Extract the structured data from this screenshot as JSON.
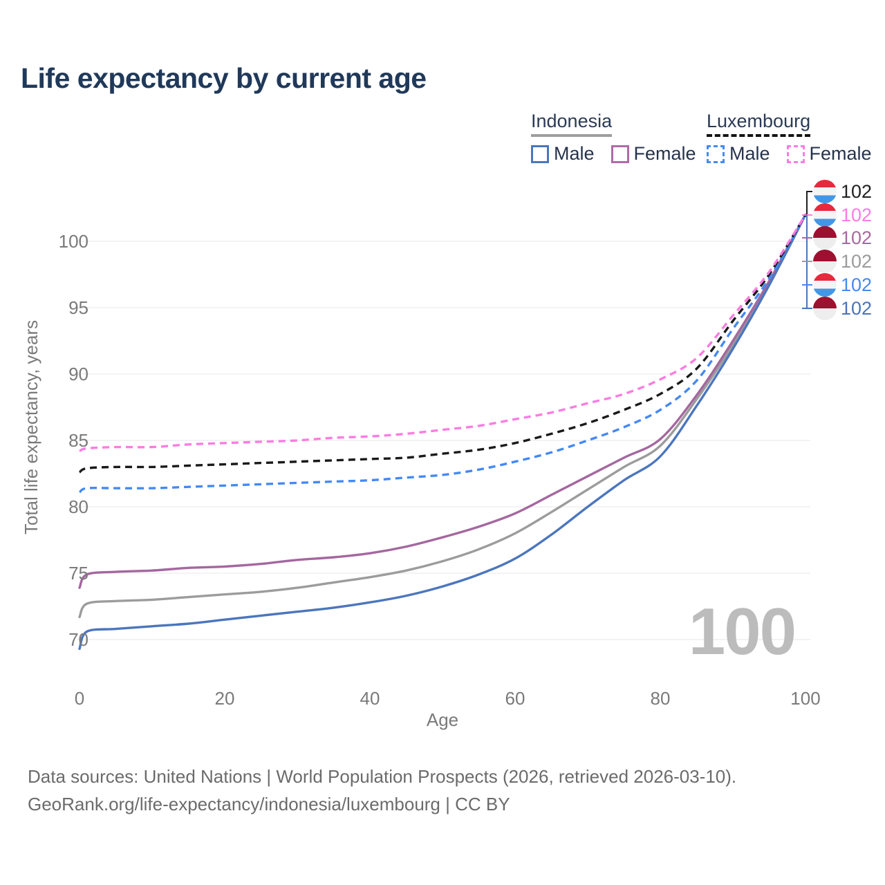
{
  "title": "Life expectancy by current age",
  "legend": {
    "groups": [
      {
        "country": "Indonesia",
        "line_style": "solid",
        "underline_color": "#9e9e9e",
        "items": [
          {
            "label": "Male",
            "color": "#4b76bd",
            "dashed": false
          },
          {
            "label": "Female",
            "color": "#ae6ba6",
            "dashed": false
          }
        ]
      },
      {
        "country": "Luxembourg",
        "line_style": "dashed",
        "underline_color": "#141414",
        "items": [
          {
            "label": "Male",
            "color": "#4489f4",
            "dashed": true
          },
          {
            "label": "Female",
            "color": "#fb7ce1",
            "dashed": true
          }
        ]
      }
    ]
  },
  "end_labels": [
    {
      "flag": "luxembourg",
      "value": "102",
      "color": "#1f1f1f",
      "series_key": "luxembourg_total"
    },
    {
      "flag": "luxembourg",
      "value": "102",
      "color": "#fb7ce1",
      "series_key": "luxembourg_female"
    },
    {
      "flag": "indonesia",
      "value": "102",
      "color": "#a7689f",
      "series_key": "indonesia_female"
    },
    {
      "flag": "indonesia",
      "value": "102",
      "color": "#9b9b9b",
      "series_key": "indonesia_total"
    },
    {
      "flag": "luxembourg",
      "value": "102",
      "color": "#4589f1",
      "series_key": "luxembourg_male"
    },
    {
      "flag": "indonesia",
      "value": "102",
      "color": "#4a74ba",
      "series_key": "indonesia_male"
    }
  ],
  "watermark": "100",
  "footer": {
    "line1": "Data sources: United Nations | World Population Prospects (2026, retrieved 2026-03-10).",
    "line2": "GeoRank.org/life-expectancy/indonesia/luxembourg | CC BY"
  },
  "chart_data": {
    "type": "line",
    "title": "Life expectancy by current age",
    "xlabel": "Age",
    "ylabel": "Total life expectancy, years",
    "x_ticks": [
      0,
      20,
      40,
      60,
      80,
      100
    ],
    "y_ticks": [
      100,
      95,
      90,
      85,
      80,
      75,
      70
    ],
    "xlim": [
      0,
      100
    ],
    "ylim": [
      68.5,
      103
    ],
    "grid": "horizontal",
    "legend_position": "top-right",
    "x": [
      0,
      1,
      5,
      10,
      15,
      20,
      25,
      30,
      35,
      40,
      45,
      50,
      55,
      60,
      65,
      70,
      75,
      80,
      85,
      90,
      95,
      100
    ],
    "series": [
      {
        "name": "Indonesia",
        "key": "indonesia_total",
        "color": "#9c9c9c",
        "dashed": false,
        "end_label": 102,
        "values": [
          71.7,
          72.7,
          72.9,
          73.0,
          73.2,
          73.4,
          73.6,
          73.9,
          74.3,
          74.7,
          75.2,
          75.9,
          76.8,
          78.0,
          79.6,
          81.3,
          83.0,
          84.6,
          88.1,
          92.2,
          96.9,
          102
        ]
      },
      {
        "name": "Indonesia Female",
        "key": "indonesia_female",
        "color": "#a4679f",
        "dashed": false,
        "end_label": 102,
        "values": [
          73.9,
          74.9,
          75.1,
          75.2,
          75.4,
          75.5,
          75.7,
          76.0,
          76.2,
          76.5,
          77.0,
          77.7,
          78.5,
          79.5,
          80.9,
          82.3,
          83.7,
          85.1,
          88.4,
          92.5,
          97.0,
          102
        ]
      },
      {
        "name": "Indonesia Male",
        "key": "indonesia_male",
        "color": "#4b76bd",
        "dashed": false,
        "end_label": 102,
        "values": [
          69.3,
          70.6,
          70.8,
          71.0,
          71.2,
          71.5,
          71.8,
          72.1,
          72.4,
          72.8,
          73.3,
          74.0,
          74.9,
          76.1,
          77.9,
          80.0,
          82.0,
          83.8,
          87.6,
          91.9,
          96.7,
          102
        ]
      },
      {
        "name": "Luxembourg Male",
        "key": "luxembourg_male",
        "color": "#4489f4",
        "dashed": true,
        "end_label": 102,
        "values": [
          81.1,
          81.4,
          81.4,
          81.4,
          81.5,
          81.6,
          81.7,
          81.8,
          81.9,
          82.0,
          82.2,
          82.4,
          82.8,
          83.4,
          84.1,
          85.0,
          86.0,
          87.3,
          89.5,
          93.4,
          97.2,
          102
        ]
      },
      {
        "name": "Luxembourg",
        "key": "luxembourg_total",
        "color": "#1a1a1a",
        "dashed": true,
        "end_label": 102,
        "values": [
          82.6,
          82.9,
          83.0,
          83.0,
          83.1,
          83.2,
          83.3,
          83.4,
          83.5,
          83.6,
          83.7,
          84.0,
          84.3,
          84.8,
          85.5,
          86.3,
          87.3,
          88.5,
          90.4,
          94.0,
          97.5,
          102
        ]
      },
      {
        "name": "Luxembourg Female",
        "key": "luxembourg_female",
        "color": "#fb7ce1",
        "dashed": true,
        "end_label": 102,
        "values": [
          84.2,
          84.4,
          84.5,
          84.5,
          84.7,
          84.8,
          84.9,
          85.0,
          85.2,
          85.3,
          85.5,
          85.8,
          86.1,
          86.6,
          87.1,
          87.8,
          88.5,
          89.6,
          91.2,
          94.4,
          97.7,
          102
        ]
      }
    ]
  }
}
